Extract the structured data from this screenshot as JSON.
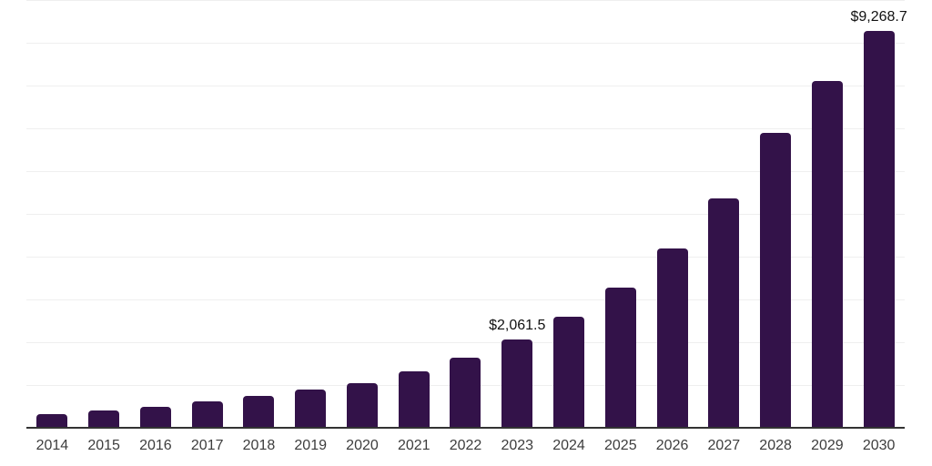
{
  "chart_data": {
    "type": "bar",
    "title": "",
    "xlabel": "",
    "ylabel": "",
    "categories": [
      "2014",
      "2015",
      "2016",
      "2017",
      "2018",
      "2019",
      "2020",
      "2021",
      "2022",
      "2023",
      "2024",
      "2025",
      "2026",
      "2027",
      "2028",
      "2029",
      "2030"
    ],
    "values": [
      310,
      410,
      495,
      610,
      735,
      890,
      1050,
      1320,
      1640,
      2061.5,
      2590,
      3280,
      4190,
      5360,
      6890,
      8115,
      9268.7
    ],
    "labeled_values": [
      {
        "category": "2023",
        "text": "$2,061.5"
      },
      {
        "category": "2030",
        "text": "$9,268.7"
      }
    ],
    "ylim": [
      0,
      10000
    ],
    "gridline_step": 1000,
    "grid": true,
    "legend": false,
    "colors": {
      "bar": "#331249",
      "axis": "#333333",
      "gridline": "#efefef",
      "tick_label": "#3d3d3d",
      "value_label": "#111111"
    }
  }
}
